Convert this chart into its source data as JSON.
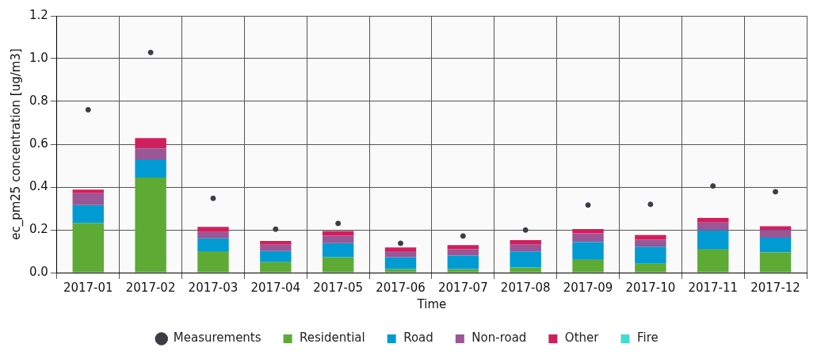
{
  "chart_data": {
    "type": "bar",
    "stacked": true,
    "xlabel": "Time",
    "ylabel": "ec_pm25 concentration [ug/m3]",
    "categories": [
      "2017-01",
      "2017-02",
      "2017-03",
      "2017-04",
      "2017-05",
      "2017-06",
      "2017-07",
      "2017-08",
      "2017-09",
      "2017-10",
      "2017-11",
      "2017-12"
    ],
    "series": [
      {
        "name": "Measurements",
        "type": "scatter",
        "color": "#3c3c44",
        "values": [
          0.761,
          1.029,
          0.347,
          0.203,
          0.23,
          0.137,
          0.171,
          0.199,
          0.316,
          0.319,
          0.405,
          0.378
        ]
      },
      {
        "name": "Residential",
        "color": "#5dab35",
        "values": [
          0.232,
          0.444,
          0.1,
          0.049,
          0.072,
          0.017,
          0.017,
          0.024,
          0.063,
          0.042,
          0.111,
          0.094
        ]
      },
      {
        "name": "Road",
        "color": "#009bd3",
        "values": [
          0.084,
          0.086,
          0.06,
          0.052,
          0.066,
          0.055,
          0.063,
          0.073,
          0.08,
          0.079,
          0.086,
          0.069
        ]
      },
      {
        "name": "Non-road",
        "color": "#9b5696",
        "values": [
          0.055,
          0.051,
          0.03,
          0.03,
          0.034,
          0.028,
          0.03,
          0.034,
          0.04,
          0.034,
          0.037,
          0.036
        ]
      },
      {
        "name": "Other",
        "color": "#d11f5d",
        "values": [
          0.017,
          0.048,
          0.024,
          0.017,
          0.022,
          0.018,
          0.019,
          0.021,
          0.021,
          0.021,
          0.022,
          0.018
        ]
      },
      {
        "name": "Fire",
        "color": "#40ddd0",
        "values": [
          0,
          0,
          0,
          0,
          0,
          0,
          0,
          0,
          0,
          0,
          0,
          0
        ]
      }
    ],
    "ylim": [
      0,
      1.2
    ],
    "yticks": [
      {
        "value": 0,
        "label": "0.0"
      },
      {
        "value": 0.2,
        "label": "0.2"
      },
      {
        "value": 0.4,
        "label": "0.4"
      },
      {
        "value": 0.6,
        "label": "0.6"
      },
      {
        "value": 0.8,
        "label": "0.8"
      },
      {
        "value": 1.0,
        "label": "1.0"
      },
      {
        "value": 1.2,
        "label": "1.2"
      }
    ],
    "grid": true,
    "legend": "bottom",
    "marker": "circle"
  }
}
